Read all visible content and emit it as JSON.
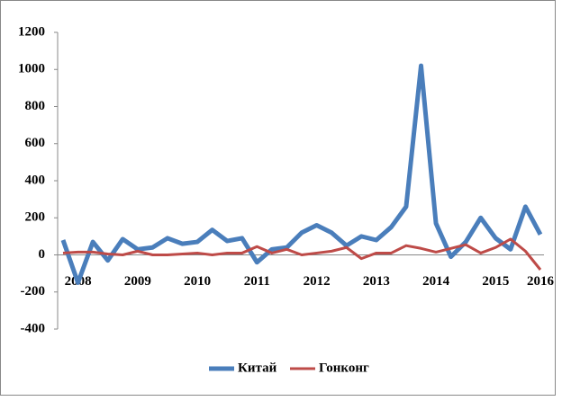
{
  "chart_data": {
    "type": "line",
    "categories": [
      null,
      "2008",
      null,
      null,
      null,
      "2009",
      null,
      null,
      null,
      "2010",
      null,
      null,
      null,
      "2011",
      null,
      null,
      null,
      "2012",
      null,
      null,
      null,
      "2013",
      null,
      null,
      null,
      "2014",
      null,
      null,
      null,
      "2015",
      null,
      null,
      "2016"
    ],
    "series": [
      {
        "name": "Китай",
        "color": "#4a7ebb",
        "values": [
          80,
          -150,
          70,
          -30,
          85,
          30,
          40,
          90,
          60,
          70,
          135,
          75,
          90,
          -40,
          30,
          40,
          120,
          160,
          120,
          50,
          100,
          80,
          150,
          260,
          1020,
          170,
          -10,
          70,
          200,
          90,
          30,
          260,
          110
        ]
      },
      {
        "name": "Гонконг",
        "color": "#be4b48",
        "values": [
          10,
          15,
          15,
          5,
          0,
          20,
          0,
          0,
          5,
          10,
          0,
          10,
          10,
          45,
          10,
          30,
          0,
          10,
          20,
          40,
          -20,
          10,
          10,
          50,
          35,
          15,
          35,
          55,
          10,
          40,
          85,
          20,
          -80
        ]
      }
    ],
    "ylim": [
      -400,
      1200
    ],
    "yticks": [
      -400,
      -200,
      0,
      200,
      400,
      600,
      800,
      1000,
      1200
    ],
    "grid": false,
    "legend": "bottom"
  }
}
